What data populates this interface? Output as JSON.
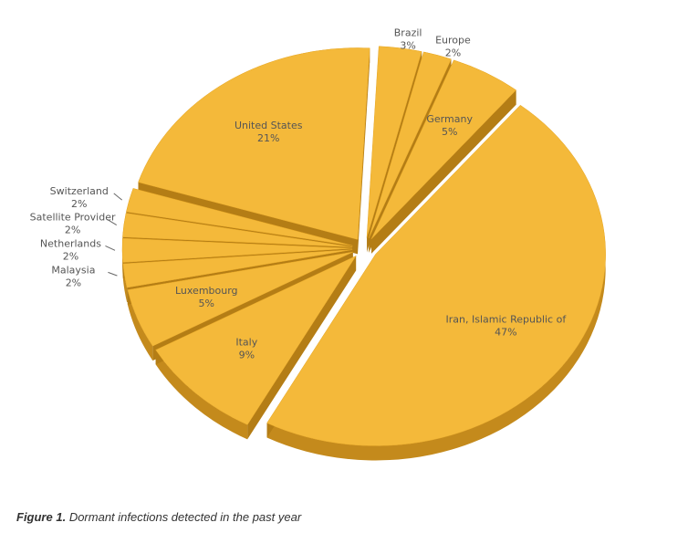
{
  "chart_data": {
    "type": "pie",
    "categories": [
      "Brazil",
      "Europe",
      "Germany",
      "Iran, Islamic Republic of",
      "Italy",
      "Luxembourg",
      "Malaysia",
      "Netherlands",
      "Satellite Provider",
      "Switzerland",
      "United States"
    ],
    "values": [
      3,
      2,
      5,
      47,
      9,
      5,
      2,
      2,
      2,
      2,
      21
    ],
    "value_labels": [
      "3%",
      "2%",
      "5%",
      "47%",
      "9%",
      "5%",
      "2%",
      "2%",
      "2%",
      "2%",
      "21%"
    ],
    "color": "#f4b93a",
    "caption_label": "Figure 1.",
    "caption": "Dormant infections detected in the past year"
  }
}
